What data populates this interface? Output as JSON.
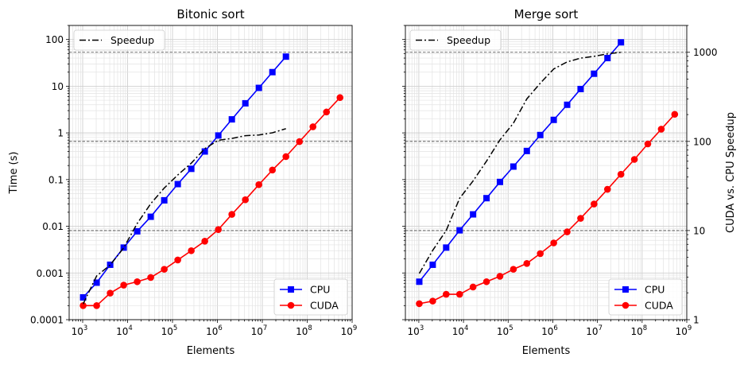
{
  "chart_data": [
    {
      "type": "line",
      "title": "Bitonic sort",
      "xlabel": "Elements",
      "ylabel": "Time (s)",
      "xscale": "log",
      "yscale": "log",
      "xlim": [
        500,
        1000000000
      ],
      "ylim": [
        0.0001,
        200
      ],
      "xticks": [
        1000,
        10000,
        100000,
        1000000,
        10000000,
        100000000,
        1000000000
      ],
      "xtick_base": "10",
      "xtick_exponents": [
        "3",
        "4",
        "5",
        "6",
        "7",
        "8",
        "9"
      ],
      "yticks": [
        0.0001,
        0.001,
        0.01,
        0.1,
        1,
        10,
        100
      ],
      "ytick_labels": [
        "0.0001",
        "0.001",
        "0.01",
        "0.1",
        "1",
        "10",
        "100"
      ],
      "grid": true,
      "legend_position": "bottom-right",
      "series": [
        {
          "name": "CPU",
          "color": "#0000ff",
          "marker": "square",
          "x": [
            1024,
            2048,
            4096,
            8192,
            16384,
            32768,
            65536,
            131072,
            262144,
            524288,
            1048576,
            2097152,
            4194304,
            8388608,
            16777216,
            33554432
          ],
          "y": [
            0.0003,
            0.00062,
            0.0015,
            0.0035,
            0.0078,
            0.016,
            0.036,
            0.08,
            0.17,
            0.4,
            0.88,
            1.95,
            4.3,
            9.2,
            20,
            43
          ]
        },
        {
          "name": "CUDA",
          "color": "#ff0000",
          "marker": "circle",
          "x": [
            1024,
            2048,
            4096,
            8192,
            16384,
            32768,
            65536,
            131072,
            262144,
            524288,
            1048576,
            2097152,
            4194304,
            8388608,
            16777216,
            33554432,
            67108864,
            134217728,
            268435456,
            536870912
          ],
          "y": [
            0.0002,
            0.0002,
            0.00037,
            0.00055,
            0.00065,
            0.0008,
            0.0012,
            0.0019,
            0.003,
            0.0048,
            0.0085,
            0.018,
            0.037,
            0.078,
            0.16,
            0.31,
            0.65,
            1.35,
            2.8,
            5.7
          ]
        }
      ],
      "speedup": {
        "name": "Speedup",
        "color": "#000000",
        "axis": "twin",
        "ylim": [
          1,
          2000
        ],
        "x": [
          1024,
          2048,
          4096,
          8192,
          16384,
          32768,
          65536,
          131072,
          262144,
          524288,
          1048576,
          2097152,
          4194304,
          8388608,
          16777216,
          33554432
        ],
        "y": [
          1.5,
          3.1,
          4.1,
          6.4,
          12,
          20,
          30,
          42,
          57,
          83,
          103,
          108,
          116,
          118,
          125,
          139
        ]
      },
      "reference_lines": [
        1000,
        100,
        10
      ]
    },
    {
      "type": "line",
      "title": "Merge sort",
      "xlabel": "Elements",
      "ylabel": "",
      "y2label": "CUDA vs. CPU Speedup",
      "xscale": "log",
      "yscale": "log",
      "xlim": [
        500,
        1000000000
      ],
      "ylim": [
        0.0001,
        200
      ],
      "xticks": [
        1000,
        10000,
        100000,
        1000000,
        10000000,
        100000000,
        1000000000
      ],
      "xtick_base": "10",
      "xtick_exponents": [
        "3",
        "4",
        "5",
        "6",
        "7",
        "8",
        "9"
      ],
      "y2lim": [
        1,
        2000
      ],
      "y2ticks": [
        1,
        10,
        100,
        1000
      ],
      "y2tick_labels": [
        "1",
        "10",
        "100",
        "1000"
      ],
      "grid": true,
      "legend_position": "bottom-right",
      "series": [
        {
          "name": "CPU",
          "color": "#0000ff",
          "marker": "square",
          "x": [
            1024,
            2048,
            4096,
            8192,
            16384,
            32768,
            65536,
            131072,
            262144,
            524288,
            1048576,
            2097152,
            4194304,
            8388608,
            16777216,
            33554432
          ],
          "y": [
            0.00065,
            0.0015,
            0.0035,
            0.0082,
            0.018,
            0.04,
            0.089,
            0.19,
            0.41,
            0.9,
            1.9,
            4,
            8.7,
            18.5,
            40,
            87
          ]
        },
        {
          "name": "CUDA",
          "color": "#ff0000",
          "marker": "circle",
          "x": [
            1024,
            2048,
            4096,
            8192,
            16384,
            32768,
            65536,
            131072,
            262144,
            524288,
            1048576,
            2097152,
            4194304,
            8388608,
            16777216,
            33554432,
            67108864,
            134217728,
            268435456,
            536870912
          ],
          "y": [
            0.00022,
            0.00025,
            0.00035,
            0.00035,
            0.0005,
            0.00065,
            0.00085,
            0.0012,
            0.0016,
            0.0026,
            0.0044,
            0.0076,
            0.0148,
            0.03,
            0.062,
            0.13,
            0.27,
            0.58,
            1.2,
            2.5
          ]
        }
      ],
      "speedup": {
        "name": "Speedup",
        "color": "#000000",
        "axis": "twin",
        "ylim": [
          1,
          2000
        ],
        "x": [
          1024,
          2048,
          4096,
          8192,
          16384,
          32768,
          65536,
          131072,
          262144,
          524288,
          1048576,
          2097152,
          4194304,
          8388608,
          16777216,
          33554432
        ],
        "y": [
          3.3,
          6,
          10,
          23,
          36,
          60,
          104,
          160,
          300,
          450,
          650,
          780,
          860,
          900,
          960,
          1000
        ]
      },
      "reference_lines": [
        1000,
        100,
        10
      ]
    }
  ]
}
